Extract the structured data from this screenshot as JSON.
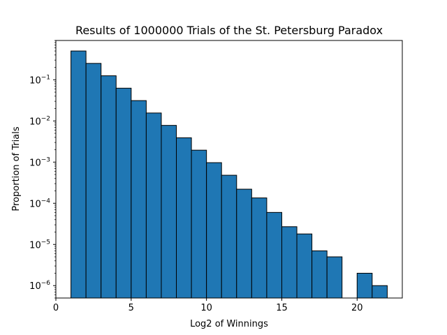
{
  "chart_data": {
    "type": "bar",
    "title": "Results of 1000000 Trials of the St. Petersburg Paradox",
    "xlabel": "Log2 of Winnings",
    "ylabel": "Proportion of Trials",
    "xlim": [
      0,
      23
    ],
    "ylim": [
      5e-07,
      0.9
    ],
    "yscale": "log",
    "grid": false,
    "bar_color": "#1f77b4",
    "edge_color": "#000000",
    "bins": [
      {
        "x0": 1,
        "x1": 2,
        "value": 0.5
      },
      {
        "x0": 2,
        "x1": 3,
        "value": 0.25
      },
      {
        "x0": 3,
        "x1": 4,
        "value": 0.125
      },
      {
        "x0": 4,
        "x1": 5,
        "value": 0.0625
      },
      {
        "x0": 5,
        "x1": 6,
        "value": 0.0312
      },
      {
        "x0": 6,
        "x1": 7,
        "value": 0.0156
      },
      {
        "x0": 7,
        "x1": 8,
        "value": 0.0078
      },
      {
        "x0": 8,
        "x1": 9,
        "value": 0.0039
      },
      {
        "x0": 9,
        "x1": 10,
        "value": 0.00195
      },
      {
        "x0": 10,
        "x1": 11,
        "value": 0.00097
      },
      {
        "x0": 11,
        "x1": 12,
        "value": 0.00048
      },
      {
        "x0": 12,
        "x1": 13,
        "value": 0.00022
      },
      {
        "x0": 13,
        "x1": 14,
        "value": 0.000135
      },
      {
        "x0": 14,
        "x1": 15,
        "value": 6e-05
      },
      {
        "x0": 15,
        "x1": 16,
        "value": 2.7e-05
      },
      {
        "x0": 16,
        "x1": 17,
        "value": 1.8e-05
      },
      {
        "x0": 17,
        "x1": 18,
        "value": 7e-06
      },
      {
        "x0": 18,
        "x1": 19,
        "value": 5e-06
      },
      {
        "x0": 20,
        "x1": 21,
        "value": 2e-06
      },
      {
        "x0": 21,
        "x1": 22,
        "value": 1e-06
      }
    ],
    "x_ticks": [
      0,
      5,
      10,
      15,
      20
    ],
    "x_tick_labels": [
      "0",
      "5",
      "10",
      "15",
      "20"
    ],
    "y_ticks": [
      {
        "value": 0.1,
        "base": "10",
        "exp": "−1"
      },
      {
        "value": 0.01,
        "base": "10",
        "exp": "−2"
      },
      {
        "value": 0.001,
        "base": "10",
        "exp": "−3"
      },
      {
        "value": 0.0001,
        "base": "10",
        "exp": "−4"
      },
      {
        "value": 1e-05,
        "base": "10",
        "exp": "−5"
      },
      {
        "value": 1e-06,
        "base": "10",
        "exp": "−6"
      }
    ]
  }
}
